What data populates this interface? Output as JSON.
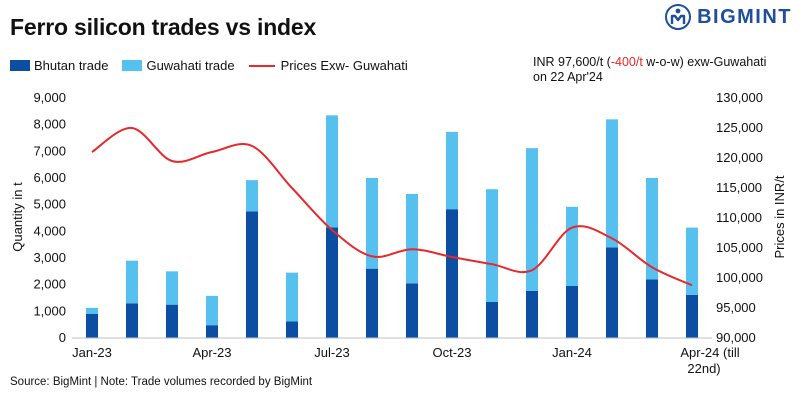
{
  "header": {
    "title": "Ferro silicon trades vs index",
    "brand": "BIGMINT"
  },
  "note": {
    "prefix": "INR 97,600/t (",
    "change": "-400/t",
    "suffix": " w-o-w)  exw-Guwahati",
    "line2": "on 22 Apr'24"
  },
  "source": "Source: BigMint | Note: Trade volumes recorded by BigMint",
  "colors": {
    "bhutan": "#0b4ea2",
    "guwahati": "#56c1ee",
    "price": "#e8282b",
    "brand": "#1f4e9c"
  },
  "chart_data": {
    "type": "bar",
    "stacked": true,
    "title": "Ferro silicon trades vs index",
    "categories": [
      "Jan-23",
      "Feb-23",
      "Mar-23",
      "Apr-23",
      "May-23",
      "Jun-23",
      "Jul-23",
      "Aug-23",
      "Sep-23",
      "Oct-23",
      "Nov-23",
      "Dec-23",
      "Jan-24",
      "Feb-24",
      "Mar-24",
      "Apr-24"
    ],
    "x_tick_labels": [
      "Jan-23",
      "Apr-23",
      "Jul-23",
      "Oct-23",
      "Jan-24",
      "Apr-24 (till"
    ],
    "x_tick_label_extra": "22nd)",
    "ylabel": "Quantity in t",
    "y2label": "Prices in INR/t",
    "ylim": [
      0,
      9000
    ],
    "y_ticks": [
      "0",
      "1,000",
      "2,000",
      "3,000",
      "4,000",
      "5,000",
      "6,000",
      "7,000",
      "8,000",
      "9,000"
    ],
    "y2lim": [
      90000,
      130000
    ],
    "y2_ticks": [
      "90,000",
      "95,000",
      "100,000",
      "105,000",
      "110,000",
      "115,000",
      "120,000",
      "125,000",
      "130,000"
    ],
    "legend_position": "top-left",
    "series": [
      {
        "name": "Bhutan trade",
        "axis": "left",
        "kind": "bar",
        "values": [
          900,
          1300,
          1250,
          480,
          4750,
          620,
          4150,
          2600,
          2050,
          4830,
          1350,
          1770,
          1950,
          3400,
          2200,
          1620
        ]
      },
      {
        "name": "Guwahati trade",
        "axis": "left",
        "kind": "bar",
        "values": [
          230,
          1600,
          1250,
          1100,
          1170,
          1830,
          4200,
          3400,
          3350,
          2900,
          4230,
          5350,
          2970,
          4800,
          3800,
          2520
        ]
      },
      {
        "name": "Prices Exw- Guwahati",
        "axis": "right",
        "kind": "line",
        "values": [
          121000,
          125000,
          119500,
          121000,
          122000,
          115000,
          108000,
          103600,
          104800,
          103500,
          102300,
          101300,
          108400,
          106600,
          101800,
          98800
        ]
      }
    ]
  }
}
